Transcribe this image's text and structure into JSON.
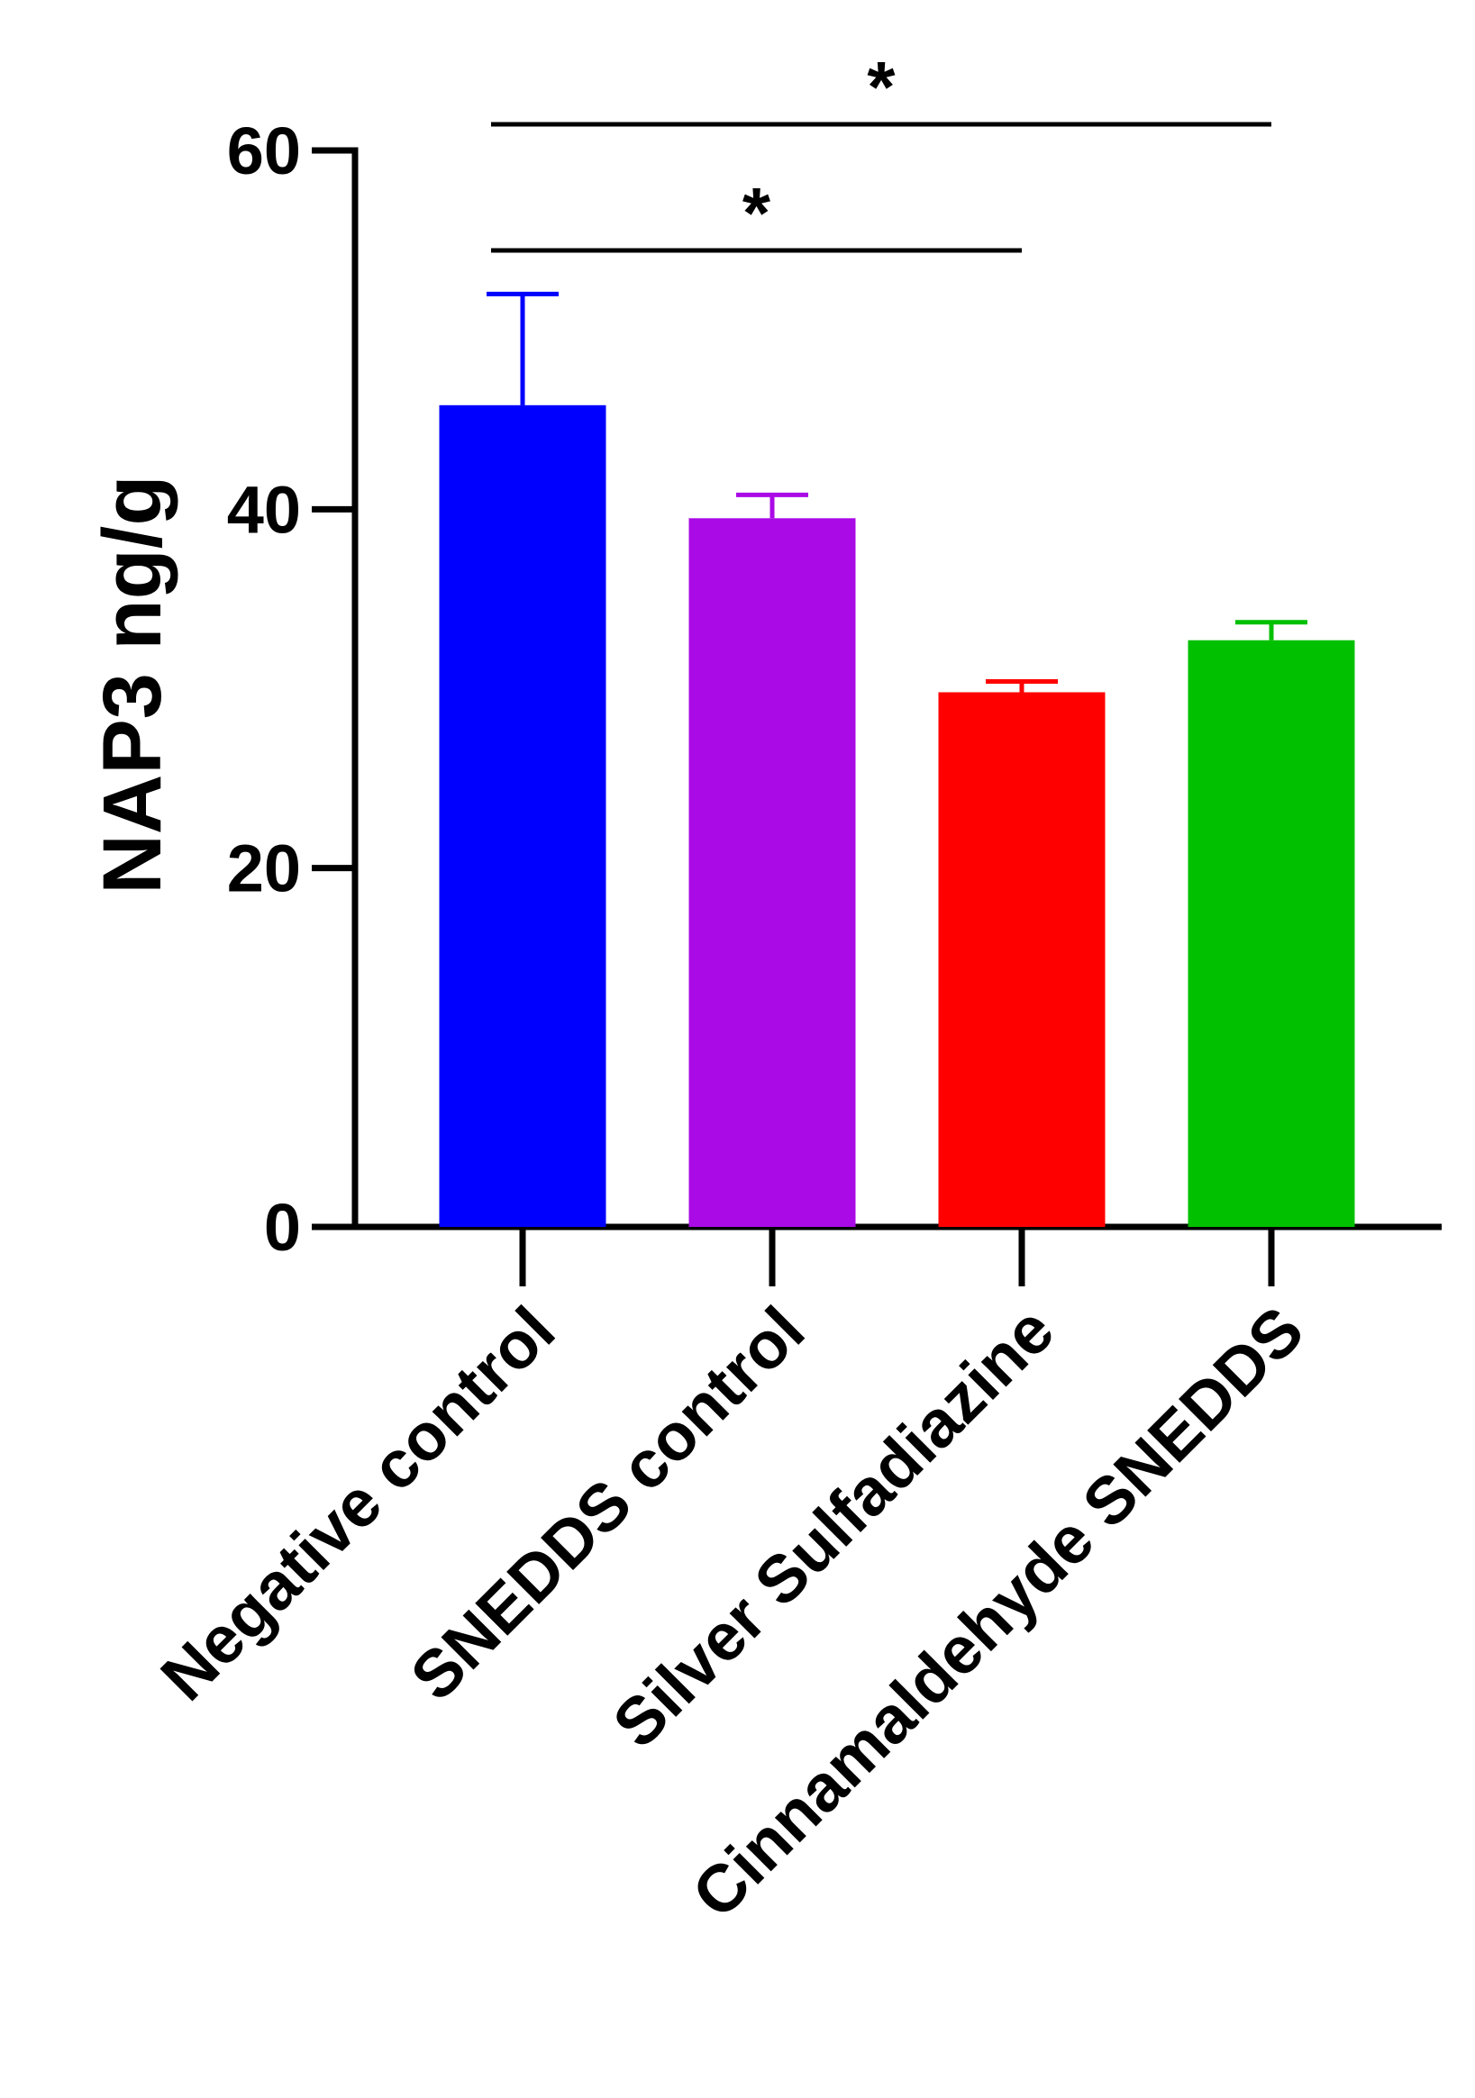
{
  "chart_data": {
    "type": "bar",
    "y_label": "NAP3 ng/g",
    "categories": [
      "Negative control",
      "SNEDDS control",
      "Silver Sulfadiazine",
      "Cinnamaldehyde SNEDDS"
    ],
    "values": [
      45.8,
      39.5,
      29.8,
      32.7
    ],
    "errors": [
      6.2,
      1.3,
      0.6,
      1.0
    ],
    "colors": [
      "#0000ff",
      "#aa0ae6",
      "#ff0000",
      "#00c000"
    ],
    "ylim": [
      0,
      60
    ],
    "yticks": [
      0,
      20,
      40,
      60
    ],
    "annotations": [
      {
        "text": "*",
        "from": 0,
        "to": 2
      },
      {
        "text": "*",
        "from": 0,
        "to": 3
      }
    ]
  }
}
